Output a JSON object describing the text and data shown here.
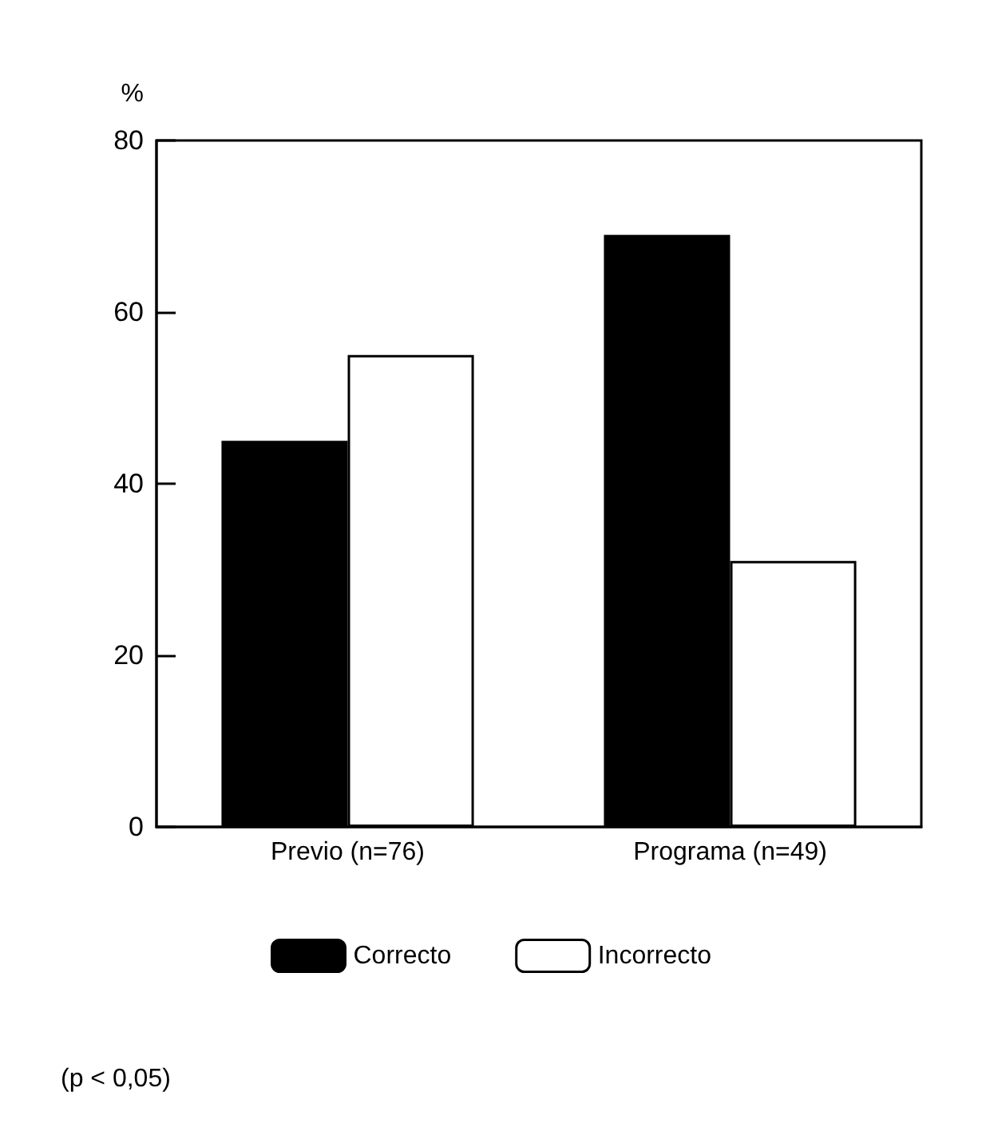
{
  "chart_data": {
    "type": "bar",
    "ylabel": "%",
    "categories": [
      "Previo (n=76)",
      "Programa (n=49)"
    ],
    "series": [
      {
        "name": "Correcto",
        "color": "#000000",
        "values": [
          45,
          69
        ]
      },
      {
        "name": "Incorrecto",
        "color": "#ffffff",
        "values": [
          55,
          31
        ]
      }
    ],
    "ylim": [
      0,
      80
    ],
    "yticks": [
      0,
      20,
      40,
      60,
      80
    ],
    "grid": false,
    "legend": "bottom",
    "annotations": [
      "(p < 0,05)"
    ]
  }
}
